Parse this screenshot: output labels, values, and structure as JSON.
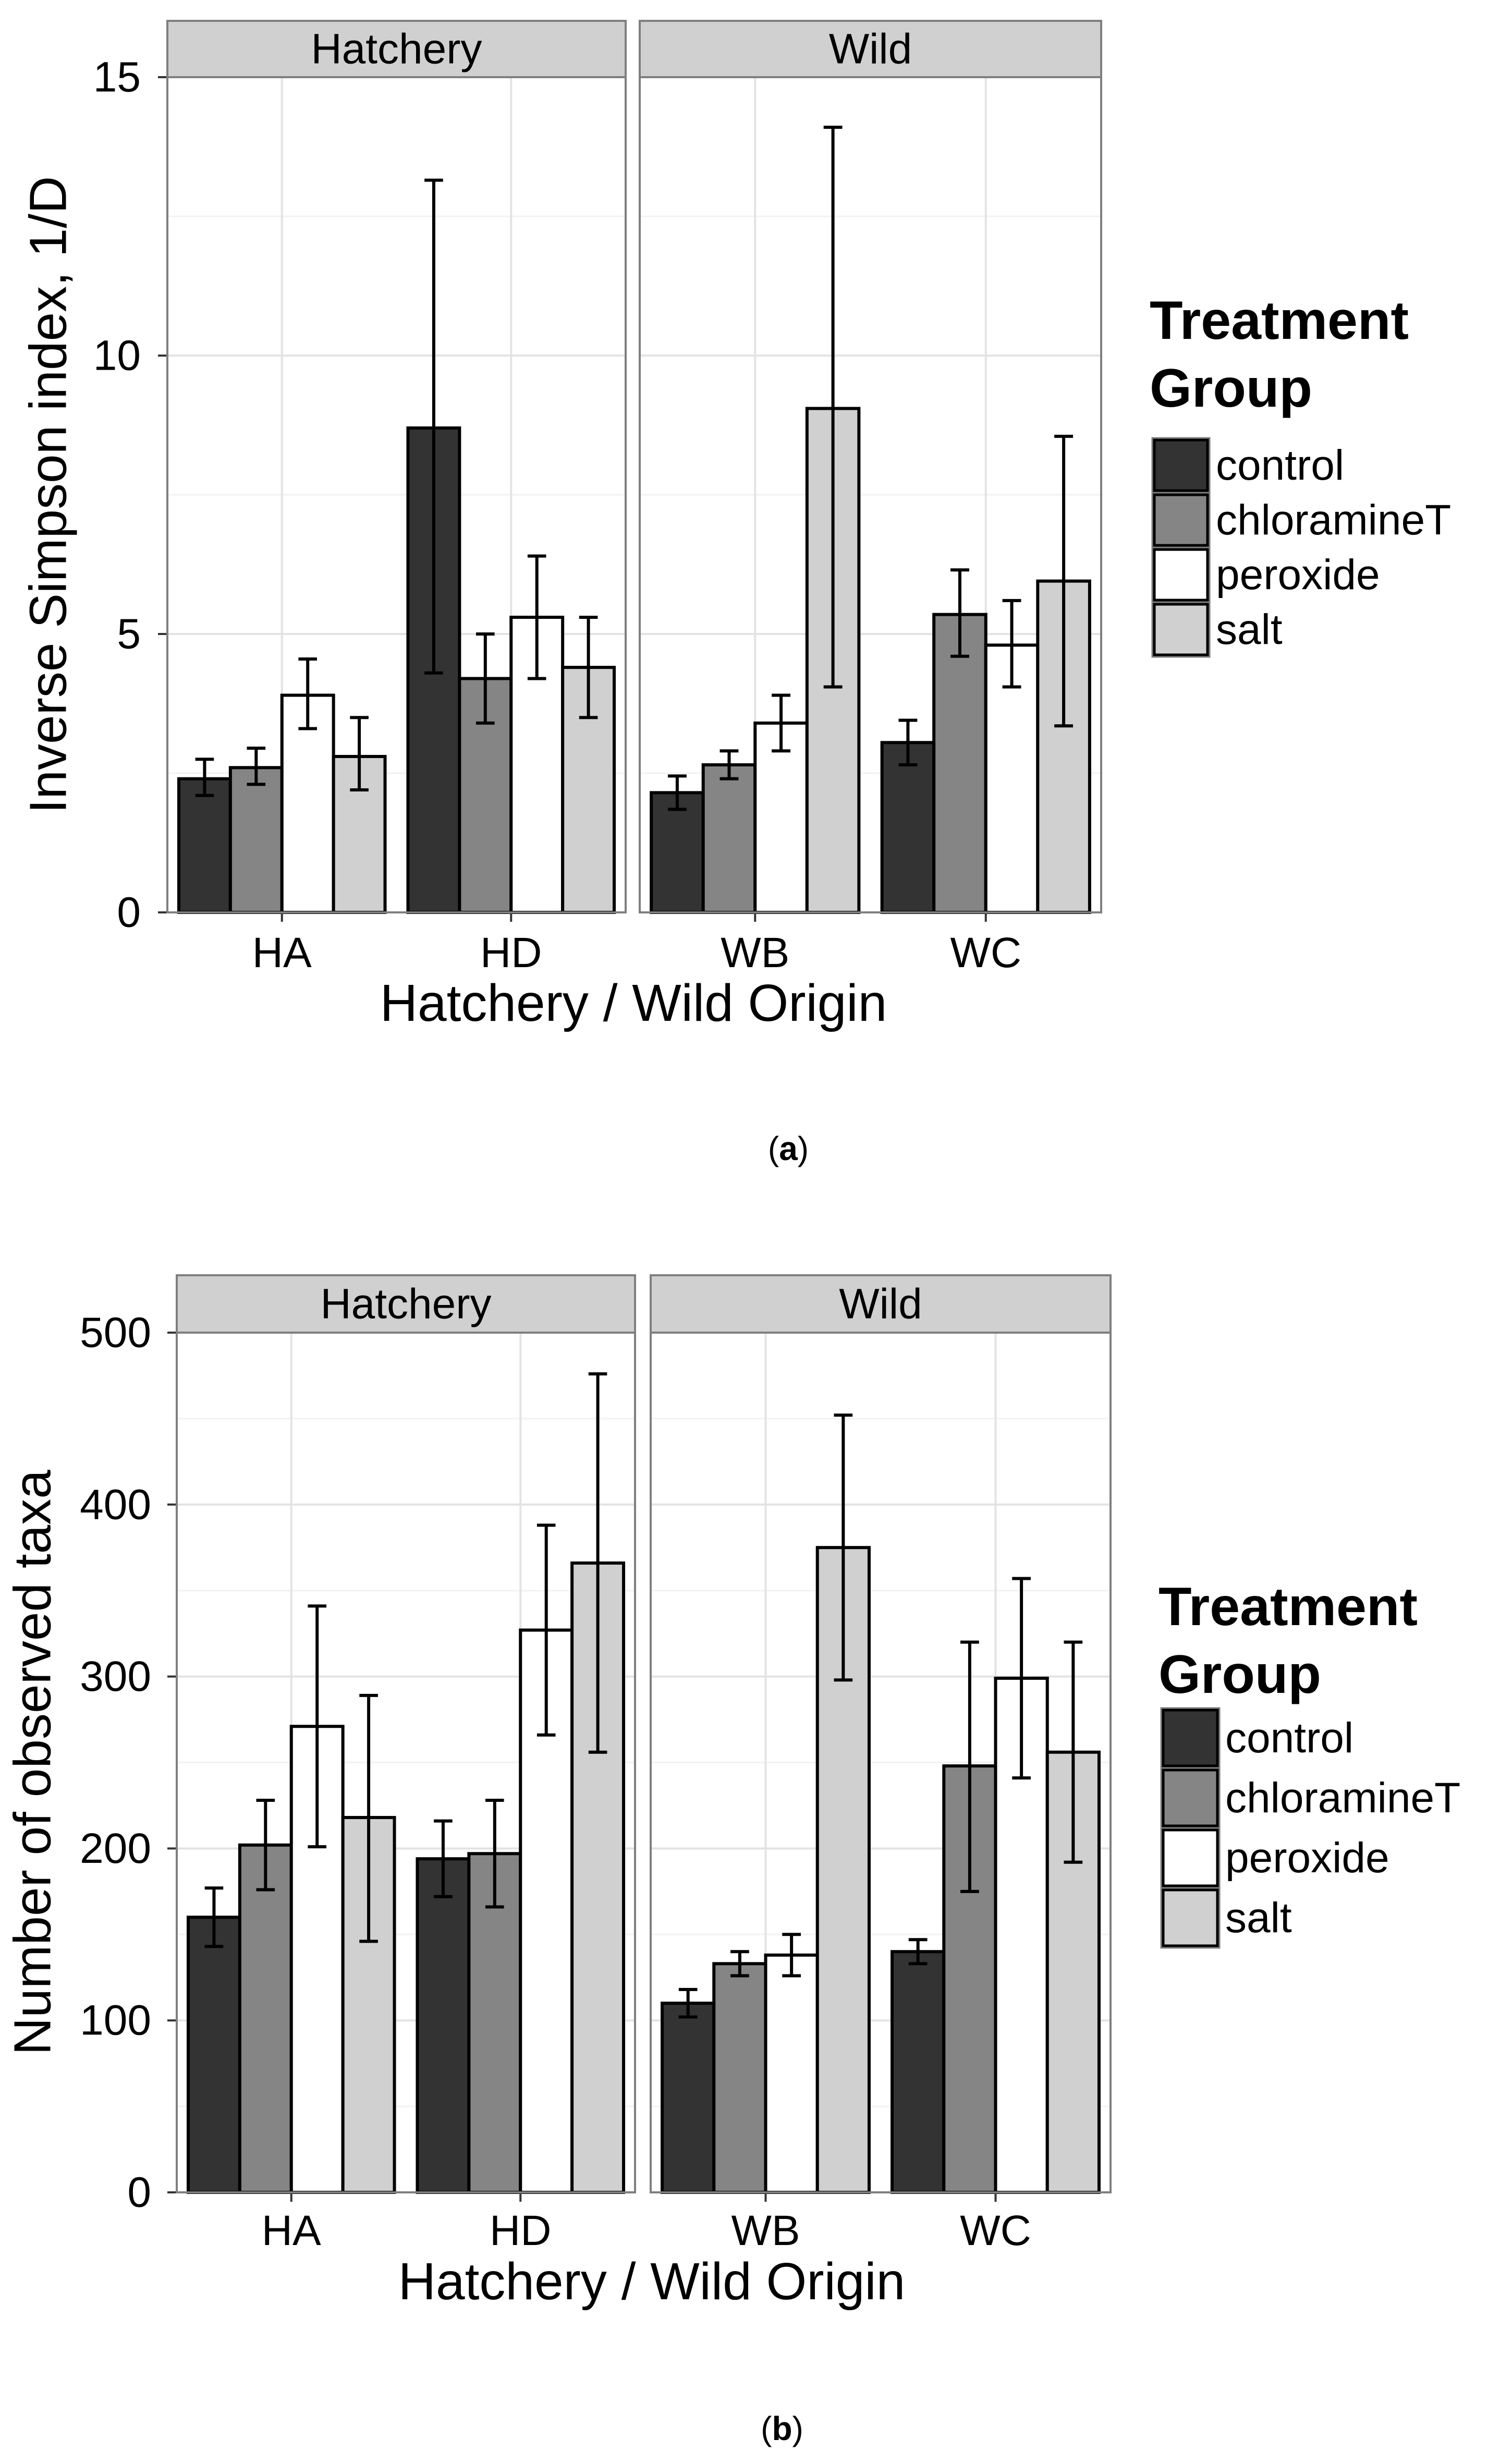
{
  "legend": {
    "title_line1": "Treatment",
    "title_line2": "Group",
    "items": [
      {
        "label": "control",
        "color": "#333333"
      },
      {
        "label": "chloramineT",
        "color": "#858585"
      },
      {
        "label": "peroxide",
        "color": "#ffffff"
      },
      {
        "label": "salt",
        "color": "#d0d0d0"
      }
    ]
  },
  "chart_data": [
    {
      "type": "bar",
      "caption": "a",
      "title": "",
      "xlabel": "Hatchery / Wild Origin",
      "ylabel": "Inverse Simpson index, 1/D",
      "ylim": [
        0,
        15
      ],
      "yticks": [
        0,
        5,
        10,
        15
      ],
      "grid": true,
      "legend_position": "right",
      "facets": [
        {
          "label": "Hatchery",
          "categories": [
            {
              "name": "HA",
              "values": [
                2.4,
                2.6,
                3.9,
                2.8
              ],
              "err_low": [
                2.1,
                2.3,
                3.3,
                2.2
              ],
              "err_high": [
                2.75,
                2.95,
                4.55,
                3.5
              ]
            },
            {
              "name": "HD",
              "values": [
                8.7,
                4.2,
                5.3,
                4.4
              ],
              "err_low": [
                4.3,
                3.4,
                4.2,
                3.5
              ],
              "err_high": [
                13.15,
                5.0,
                6.4,
                5.3
              ]
            }
          ]
        },
        {
          "label": "Wild",
          "categories": [
            {
              "name": "WB",
              "values": [
                2.15,
                2.65,
                3.4,
                9.05
              ],
              "err_low": [
                1.85,
                2.4,
                2.9,
                4.05
              ],
              "err_high": [
                2.45,
                2.9,
                3.9,
                14.1
              ]
            },
            {
              "name": "WC",
              "values": [
                3.05,
                5.35,
                4.8,
                5.95
              ],
              "err_low": [
                2.65,
                4.6,
                4.05,
                3.35
              ],
              "err_high": [
                3.45,
                6.15,
                5.6,
                8.55
              ]
            }
          ]
        }
      ]
    },
    {
      "type": "bar",
      "caption": "b",
      "title": "",
      "xlabel": "Hatchery / Wild Origin",
      "ylabel": "Number of observed taxa",
      "ylim": [
        0,
        500
      ],
      "yticks": [
        0,
        100,
        200,
        300,
        400,
        500
      ],
      "grid": true,
      "legend_position": "right",
      "facets": [
        {
          "label": "Hatchery",
          "categories": [
            {
              "name": "HA",
              "values": [
                160,
                202,
                271,
                218
              ],
              "err_low": [
                143,
                176,
                201,
                146
              ],
              "err_high": [
                177,
                228,
                341,
                289
              ]
            },
            {
              "name": "HD",
              "values": [
                194,
                197,
                327,
                366
              ],
              "err_low": [
                172,
                166,
                266,
                256
              ],
              "err_high": [
                216,
                228,
                388,
                476
              ]
            }
          ]
        },
        {
          "label": "Wild",
          "categories": [
            {
              "name": "WB",
              "values": [
                110,
                133,
                138,
                375
              ],
              "err_low": [
                102,
                126,
                126,
                298
              ],
              "err_high": [
                118,
                140,
                150,
                452
              ]
            },
            {
              "name": "WC",
              "values": [
                140,
                248,
                299,
                256
              ],
              "err_low": [
                133,
                175,
                241,
                192
              ],
              "err_high": [
                147,
                320,
                357,
                320
              ]
            }
          ]
        }
      ]
    }
  ]
}
